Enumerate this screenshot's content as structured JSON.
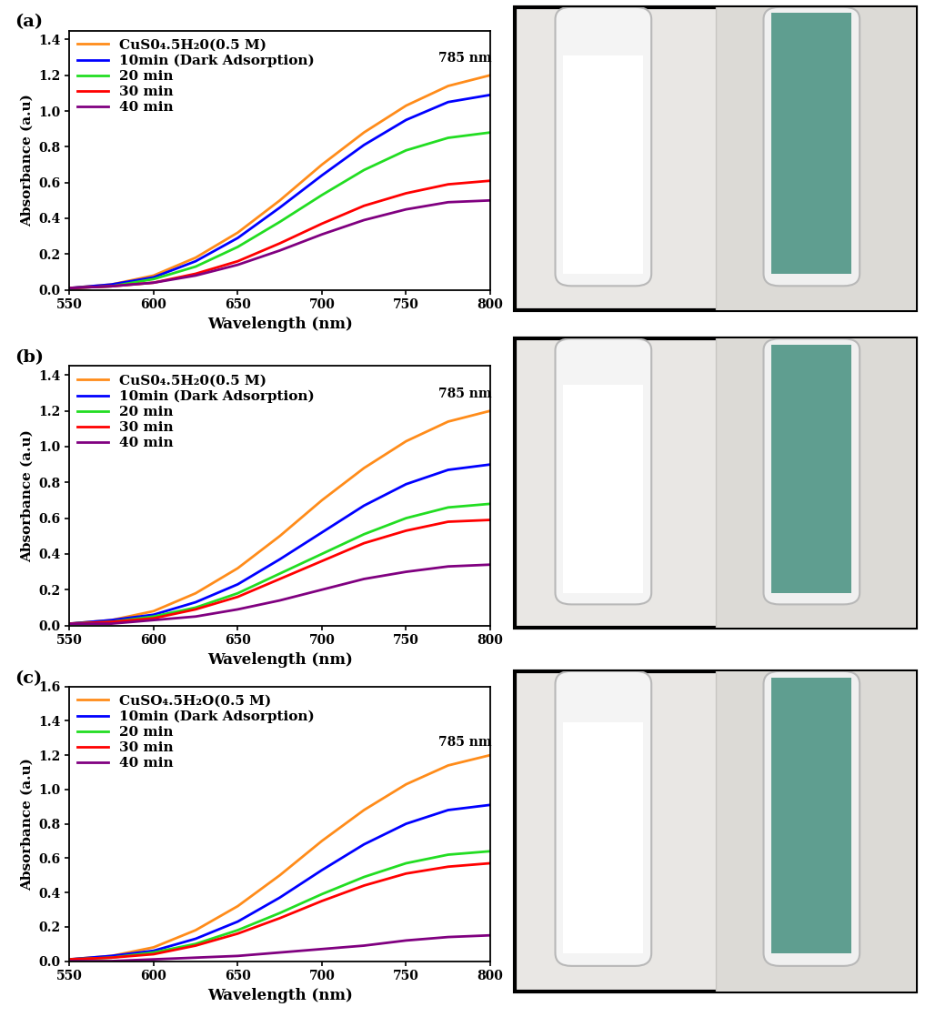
{
  "chart_data": [
    {
      "type": "line",
      "title": "(a)",
      "x_label": "Wavelength (nm)",
      "y_label": "Absorbance (a.u)",
      "x": [
        550,
        575,
        600,
        625,
        650,
        675,
        700,
        725,
        750,
        775,
        800
      ],
      "xlim": [
        550,
        800
      ],
      "xticks": [
        550,
        600,
        650,
        700,
        750,
        800
      ],
      "ylim": [
        0,
        1.45
      ],
      "yticks": [
        {
          "value": 0,
          "label": "0.0"
        },
        0.2,
        0.4,
        0.6,
        0.8,
        {
          "value": 1,
          "label": "1.0"
        },
        1.2,
        1.4
      ],
      "legend": "upper left",
      "annotations": [
        {
          "text": "785 nm",
          "x": 785,
          "y": 1.26
        }
      ],
      "series": [
        {
          "name": "CuS0₄.5H₂0(0.5 M)",
          "color": "#ff8c1a",
          "values": [
            0.01,
            0.03,
            0.08,
            0.18,
            0.32,
            0.5,
            0.7,
            0.88,
            1.03,
            1.14,
            1.2
          ]
        },
        {
          "name": "10min (Dark Adsorption)",
          "color": "#0000ff",
          "values": [
            0.01,
            0.03,
            0.07,
            0.16,
            0.29,
            0.46,
            0.64,
            0.81,
            0.95,
            1.05,
            1.09
          ]
        },
        {
          "name": "20 min",
          "color": "#22dd22",
          "values": [
            0.01,
            0.02,
            0.06,
            0.13,
            0.24,
            0.38,
            0.53,
            0.67,
            0.78,
            0.85,
            0.88
          ]
        },
        {
          "name": "30 min",
          "color": "#ff0000",
          "values": [
            0.01,
            0.02,
            0.04,
            0.09,
            0.16,
            0.26,
            0.37,
            0.47,
            0.54,
            0.59,
            0.61
          ]
        },
        {
          "name": "40 min",
          "color": "#800080",
          "values": [
            0.01,
            0.02,
            0.04,
            0.08,
            0.14,
            0.22,
            0.31,
            0.39,
            0.45,
            0.49,
            0.5
          ]
        }
      ]
    },
    {
      "type": "line",
      "title": "(b)",
      "x_label": "Wavelength (nm)",
      "y_label": "Absorbance (a.u)",
      "x": [
        550,
        575,
        600,
        625,
        650,
        675,
        700,
        725,
        750,
        775,
        800
      ],
      "xlim": [
        550,
        800
      ],
      "xticks": [
        550,
        600,
        650,
        700,
        750,
        800
      ],
      "ylim": [
        0,
        1.45
      ],
      "yticks": [
        {
          "value": 0,
          "label": "0.0"
        },
        0.2,
        0.4,
        0.6,
        0.8,
        {
          "value": 1,
          "label": "1.0"
        },
        1.2,
        1.4
      ],
      "legend": "upper left",
      "annotations": [
        {
          "text": "785 nm",
          "x": 785,
          "y": 1.26
        }
      ],
      "series": [
        {
          "name": "CuS0₄.5H₂0(0.5 M)",
          "color": "#ff8c1a",
          "values": [
            0.01,
            0.03,
            0.08,
            0.18,
            0.32,
            0.5,
            0.7,
            0.88,
            1.03,
            1.14,
            1.2
          ]
        },
        {
          "name": "10min (Dark Adsorption)",
          "color": "#0000ff",
          "values": [
            0.01,
            0.03,
            0.06,
            0.13,
            0.23,
            0.37,
            0.52,
            0.67,
            0.79,
            0.87,
            0.9
          ]
        },
        {
          "name": "20 min",
          "color": "#22dd22",
          "values": [
            0.01,
            0.02,
            0.05,
            0.1,
            0.18,
            0.29,
            0.4,
            0.51,
            0.6,
            0.66,
            0.68
          ]
        },
        {
          "name": "30 min",
          "color": "#ff0000",
          "values": [
            0.01,
            0.02,
            0.04,
            0.09,
            0.16,
            0.26,
            0.36,
            0.46,
            0.53,
            0.58,
            0.59
          ]
        },
        {
          "name": "40 min",
          "color": "#800080",
          "values": [
            0.01,
            0.01,
            0.03,
            0.05,
            0.09,
            0.14,
            0.2,
            0.26,
            0.3,
            0.33,
            0.34
          ]
        }
      ]
    },
    {
      "type": "line",
      "title": "(c)",
      "x_label": "Wavelength (nm)",
      "y_label": "Absorbance (a.u)",
      "x": [
        550,
        575,
        600,
        625,
        650,
        675,
        700,
        725,
        750,
        775,
        800
      ],
      "xlim": [
        550,
        800
      ],
      "xticks": [
        550,
        600,
        650,
        700,
        750,
        800
      ],
      "ylim": [
        0,
        1.6
      ],
      "yticks": [
        {
          "value": 0,
          "label": "0.0"
        },
        0.2,
        0.4,
        0.6,
        0.8,
        {
          "value": 1,
          "label": "1.0"
        },
        1.2,
        1.4,
        1.6
      ],
      "legend": "upper left",
      "annotations": [
        {
          "text": "785 nm",
          "x": 785,
          "y": 1.24
        }
      ],
      "series": [
        {
          "name": "CuSO₄.5H₂O(0.5 M)",
          "color": "#ff8c1a",
          "values": [
            0.01,
            0.03,
            0.08,
            0.18,
            0.32,
            0.5,
            0.7,
            0.88,
            1.03,
            1.14,
            1.2
          ]
        },
        {
          "name": "10min (Dark Adsorption)",
          "color": "#0000ff",
          "values": [
            0.01,
            0.03,
            0.06,
            0.13,
            0.23,
            0.37,
            0.53,
            0.68,
            0.8,
            0.88,
            0.91
          ]
        },
        {
          "name": "20 min",
          "color": "#22dd22",
          "values": [
            0.01,
            0.02,
            0.05,
            0.1,
            0.18,
            0.28,
            0.39,
            0.49,
            0.57,
            0.62,
            0.64
          ]
        },
        {
          "name": "30 min",
          "color": "#ff0000",
          "values": [
            0.01,
            0.02,
            0.04,
            0.09,
            0.16,
            0.25,
            0.35,
            0.44,
            0.51,
            0.55,
            0.57
          ]
        },
        {
          "name": "40 min",
          "color": "#800080",
          "values": [
            0,
            0,
            0.01,
            0.02,
            0.03,
            0.05,
            0.07,
            0.09,
            0.12,
            0.14,
            0.15
          ]
        }
      ]
    }
  ]
}
